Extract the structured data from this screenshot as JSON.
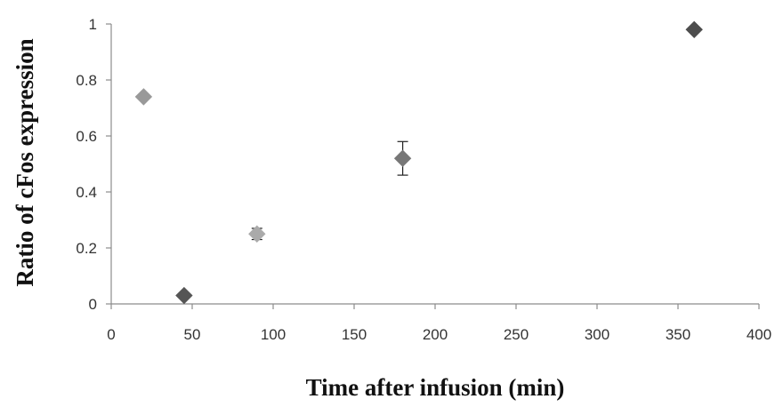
{
  "chart_data": {
    "type": "scatter",
    "xlabel": "Time after infusion (min)",
    "ylabel": "Ratio of  cFos expression",
    "xlim": [
      0,
      400
    ],
    "ylim": [
      0,
      1
    ],
    "xticks": [
      0,
      50,
      100,
      150,
      200,
      250,
      300,
      350,
      400
    ],
    "yticks": [
      0,
      0.2,
      0.4,
      0.6,
      0.8,
      1
    ],
    "grid": false,
    "marker": "diamond",
    "points": [
      {
        "x": 20,
        "y": 0.74,
        "color": "#999999"
      },
      {
        "x": 45,
        "y": 0.03,
        "color": "#555555"
      },
      {
        "x": 90,
        "y": 0.25,
        "color": "#aaaaaa",
        "err": 0.02
      },
      {
        "x": 180,
        "y": 0.52,
        "color": "#777777",
        "err": 0.06
      },
      {
        "x": 360,
        "y": 0.98,
        "color": "#4d4d4d"
      }
    ]
  }
}
